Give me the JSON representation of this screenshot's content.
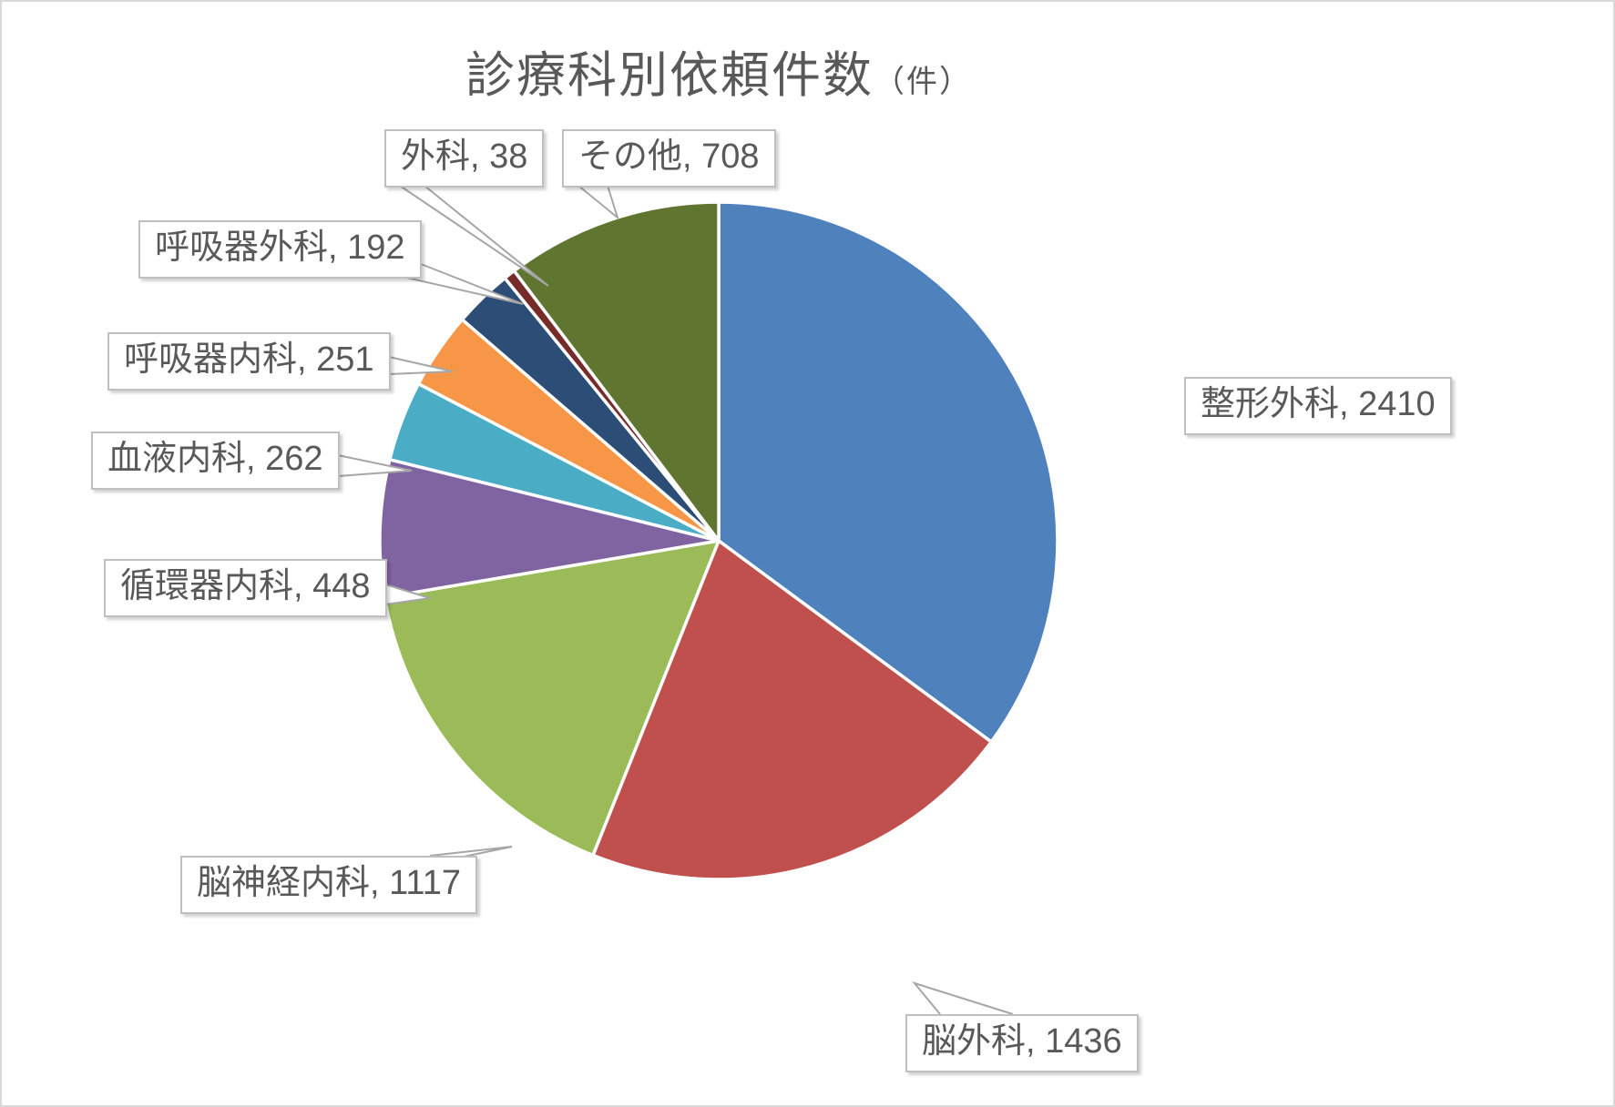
{
  "title": {
    "main": "診療科別依頼件数",
    "unit": "（件）"
  },
  "chart_data": {
    "type": "pie",
    "title": "診療科別依頼件数（件）",
    "start_angle_deg": 0,
    "direction": "clockwise",
    "total": 6862,
    "legend": "none",
    "label_format": "category, value",
    "label_separator": ", ",
    "slices": [
      {
        "label": "整形外科",
        "value": 2410,
        "color": "#4F81BD"
      },
      {
        "label": "脳外科",
        "value": 1436,
        "color": "#C0504D"
      },
      {
        "label": "脳神経内科",
        "value": 1117,
        "color": "#9BBB59"
      },
      {
        "label": "循環器内科",
        "value": 448,
        "color": "#8064A2"
      },
      {
        "label": "血液内科",
        "value": 262,
        "color": "#4BACC6"
      },
      {
        "label": "呼吸器内科",
        "value": 251,
        "color": "#F79646"
      },
      {
        "label": "呼吸器外科",
        "value": 192,
        "color": "#2C4D75"
      },
      {
        "label": "外科",
        "value": 38,
        "color": "#772C2A"
      },
      {
        "label": "その他",
        "value": 708,
        "color": "#5F7530"
      }
    ]
  },
  "colors": {
    "background": "#FFFFFF",
    "canvas_border": "#D9D9D9",
    "title_text": "#595959",
    "label_text": "#595959",
    "label_box_border": "#BFBFBF",
    "label_box_fill": "#FFFFFF",
    "leader_line": "#A6A6A6",
    "slice_gap": "#FFFFFF"
  }
}
